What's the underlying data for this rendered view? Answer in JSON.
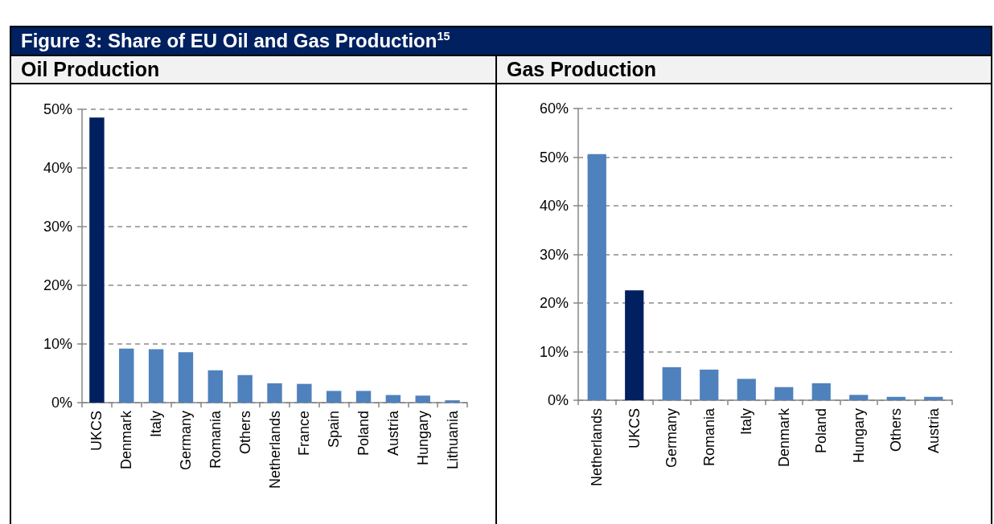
{
  "chart_data": [
    {
      "type": "bar",
      "title": "Figure 3: Share of EU Oil and Gas Production$^{15}$",
      "subtitle": "Oil Production",
      "categories": [
        "UKCS",
        "Denmark",
        "Italy",
        "Germany",
        "Romania",
        "Others",
        "Netherlands",
        "France",
        "Spain",
        "Poland",
        "Austria",
        "Hungary",
        "Lithuania"
      ],
      "values": [
        48.6,
        9.2,
        9.1,
        8.6,
        5.5,
        4.7,
        3.3,
        3.2,
        2.0,
        2.0,
        1.3,
        1.2,
        0.4
      ],
      "colors": [
        "#002060",
        "#4f81bd",
        "#4f81bd",
        "#4f81bd",
        "#4f81bd",
        "#4f81bd",
        "#4f81bd",
        "#4f81bd",
        "#4f81bd",
        "#4f81bd",
        "#4f81bd",
        "#4f81bd",
        "#4f81bd"
      ],
      "ylim": [
        0,
        50
      ],
      "yticks": [
        {
          "value": 0,
          "label": "0%"
        },
        {
          "value": 10,
          "label": "10%"
        },
        {
          "value": 20,
          "label": "20%"
        },
        {
          "value": 30,
          "label": "30%"
        },
        {
          "value": 40,
          "label": "40%"
        },
        {
          "value": 50,
          "label": "50%"
        }
      ],
      "grid": "y"
    },
    {
      "type": "bar",
      "subtitle": "Gas Production",
      "categories": [
        "Netherlands",
        "UKCS",
        "Germany",
        "Romania",
        "Italy",
        "Denmark",
        "Poland",
        "Hungary",
        "Others",
        "Austria"
      ],
      "values": [
        50.6,
        22.6,
        6.8,
        6.3,
        4.4,
        2.7,
        3.5,
        1.1,
        0.7,
        0.7
      ],
      "colors": [
        "#4f81bd",
        "#002060",
        "#4f81bd",
        "#4f81bd",
        "#4f81bd",
        "#4f81bd",
        "#4f81bd",
        "#4f81bd",
        "#4f81bd",
        "#4f81bd"
      ],
      "ylim": [
        0,
        60
      ],
      "yticks": [
        {
          "value": 0,
          "label": "0%"
        },
        {
          "value": 10,
          "label": "10%"
        },
        {
          "value": 20,
          "label": "20%"
        },
        {
          "value": 30,
          "label": "30%"
        },
        {
          "value": 40,
          "label": "40%"
        },
        {
          "value": 50,
          "label": "50%"
        },
        {
          "value": 60,
          "label": "60%"
        }
      ],
      "grid": "y"
    }
  ]
}
